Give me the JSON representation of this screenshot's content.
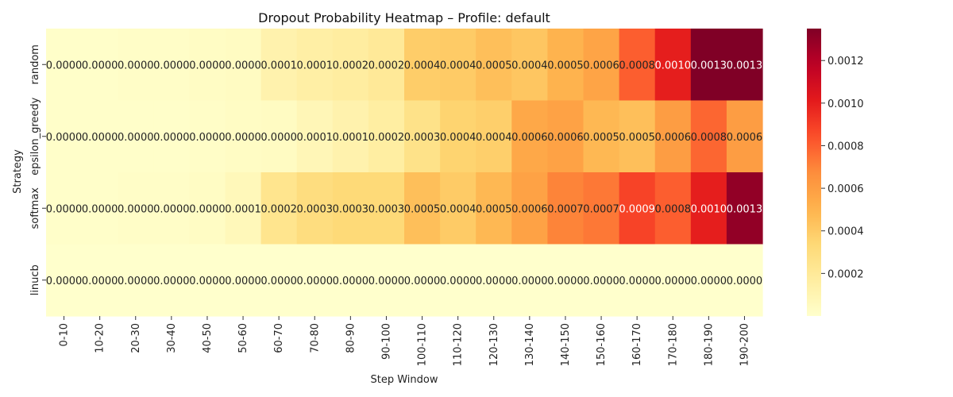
{
  "chart_data": {
    "type": "heatmap",
    "title": "Dropout Probability Heatmap – Profile: default",
    "xlabel": "Step Window",
    "ylabel": "Strategy",
    "x_categories": [
      "0-10",
      "10-20",
      "20-30",
      "30-40",
      "40-50",
      "50-60",
      "60-70",
      "70-80",
      "80-90",
      "90-100",
      "100-110",
      "110-120",
      "120-130",
      "130-140",
      "140-150",
      "150-160",
      "160-170",
      "170-180",
      "180-190",
      "190-200"
    ],
    "y_categories": [
      "random",
      "epsilon_greedy",
      "softmax",
      "linucb"
    ],
    "values": [
      [
        1e-05,
        1e-05,
        2e-05,
        2e-05,
        3e-05,
        4e-05,
        0.00012,
        0.00015,
        0.00017,
        0.0002,
        0.00039,
        0.0004,
        0.00045,
        0.00042,
        0.0005,
        0.00057,
        0.0008,
        0.001,
        0.00135,
        0.00135
      ],
      [
        1e-05,
        1e-05,
        1e-05,
        1e-05,
        2e-05,
        3e-05,
        4e-05,
        8e-05,
        0.00012,
        0.00016,
        0.00026,
        0.00036,
        0.00038,
        0.00055,
        0.00058,
        0.00048,
        0.00045,
        0.0006,
        0.00078,
        0.0006
      ],
      [
        1e-05,
        1e-05,
        2e-05,
        2e-05,
        3e-05,
        7e-05,
        0.00024,
        0.0003,
        0.00033,
        0.00033,
        0.00045,
        0.0004,
        0.00048,
        0.00058,
        0.0007,
        0.00073,
        0.00088,
        0.0008,
        0.001,
        0.0013
      ],
      [
        1e-06,
        1e-06,
        1e-06,
        1e-06,
        1e-06,
        1e-06,
        1e-06,
        1e-06,
        1e-06,
        1e-06,
        1e-06,
        1e-06,
        1e-06,
        1e-06,
        1e-06,
        1e-06,
        1e-06,
        1e-06,
        1e-06,
        1e-06
      ]
    ],
    "cell_labels": [
      [
        "0.0000",
        "0.0000",
        "0.0000",
        "0.0000",
        "0.0000",
        "0.0000",
        "0.0001",
        "0.0001",
        "0.0002",
        "0.0002",
        "0.0004",
        "0.0004",
        "0.0005",
        "0.0004",
        "0.0005",
        "0.0006",
        "0.0008",
        "0.0010",
        "0.0013",
        "0.0013"
      ],
      [
        "0.0000",
        "0.0000",
        "0.0000",
        "0.0000",
        "0.0000",
        "0.0000",
        "0.0000",
        "0.0001",
        "0.0001",
        "0.0002",
        "0.0003",
        "0.0004",
        "0.0004",
        "0.0006",
        "0.0006",
        "0.0005",
        "0.0005",
        "0.0006",
        "0.0008",
        "0.0006"
      ],
      [
        "0.0000",
        "0.0000",
        "0.0000",
        "0.0000",
        "0.0000",
        "0.0001",
        "0.0002",
        "0.0003",
        "0.0003",
        "0.0003",
        "0.0005",
        "0.0004",
        "0.0005",
        "0.0006",
        "0.0007",
        "0.0007",
        "0.0009",
        "0.0008",
        "0.0010",
        "0.0013"
      ],
      [
        "0.0000",
        "0.0000",
        "0.0000",
        "0.0000",
        "0.0000",
        "0.0000",
        "0.0000",
        "0.0000",
        "0.0000",
        "0.0000",
        "0.0000",
        "0.0000",
        "0.0000",
        "0.0000",
        "0.0000",
        "0.0000",
        "0.0000",
        "0.0000",
        "0.0000",
        "0.0000"
      ]
    ],
    "vmin": 0.0,
    "vmax": 0.00135,
    "colormap": "YlOrRd",
    "colorbar_ticks": [
      0.0002,
      0.0004,
      0.0006,
      0.0008,
      0.001,
      0.0012
    ],
    "colorbar_tick_labels": [
      "0.0002",
      "0.0004",
      "0.0006",
      "0.0008",
      "0.0010",
      "0.0012"
    ],
    "grid": false,
    "legend": "colorbar-right"
  }
}
